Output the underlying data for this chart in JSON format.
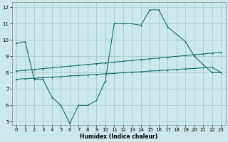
{
  "xlabel": "Humidex (Indice chaleur)",
  "background_color": "#cce8e8",
  "grid_color": "#aacccc",
  "line_color": "#1a6e6e",
  "xlim": [
    -0.5,
    23.5
  ],
  "ylim": [
    4.8,
    12.3
  ],
  "xticks": [
    0,
    1,
    2,
    3,
    4,
    5,
    6,
    7,
    8,
    9,
    10,
    11,
    12,
    13,
    14,
    15,
    16,
    17,
    18,
    19,
    20,
    21,
    22,
    23
  ],
  "yticks": [
    5,
    6,
    7,
    8,
    9,
    10,
    11,
    12
  ],
  "line1_x": [
    0,
    1,
    2,
    3,
    4,
    5,
    6,
    7,
    8,
    9,
    10,
    11,
    12,
    13,
    14,
    15,
    16,
    17,
    19,
    20,
    21,
    22,
    23
  ],
  "line1_y": [
    9.8,
    9.9,
    7.6,
    7.6,
    6.5,
    6.0,
    4.9,
    6.0,
    6.0,
    6.3,
    7.5,
    11.0,
    11.0,
    11.0,
    10.9,
    11.85,
    11.85,
    10.8,
    9.9,
    9.0,
    8.5,
    8.0,
    8.0
  ],
  "line2_x": [
    0,
    1,
    2,
    3,
    4,
    5,
    6,
    7,
    8,
    9,
    10,
    11,
    12,
    13,
    14,
    15,
    16,
    17,
    18,
    19,
    20,
    21,
    22,
    23
  ],
  "line2_y": [
    8.1,
    8.15,
    8.2,
    8.25,
    8.3,
    8.35,
    8.4,
    8.45,
    8.5,
    8.55,
    8.6,
    8.65,
    8.7,
    8.75,
    8.8,
    8.85,
    8.9,
    8.95,
    9.0,
    9.05,
    9.1,
    9.15,
    9.2,
    9.25
  ],
  "line3_x": [
    0,
    1,
    2,
    3,
    4,
    5,
    6,
    7,
    8,
    9,
    10,
    11,
    12,
    13,
    14,
    15,
    16,
    17,
    18,
    19,
    20,
    21,
    22,
    23
  ],
  "line3_y": [
    7.6,
    7.63,
    7.66,
    7.7,
    7.73,
    7.76,
    7.8,
    7.83,
    7.86,
    7.9,
    7.93,
    7.96,
    8.0,
    8.03,
    8.06,
    8.1,
    8.13,
    8.16,
    8.2,
    8.23,
    8.26,
    8.3,
    8.33,
    8.0
  ]
}
